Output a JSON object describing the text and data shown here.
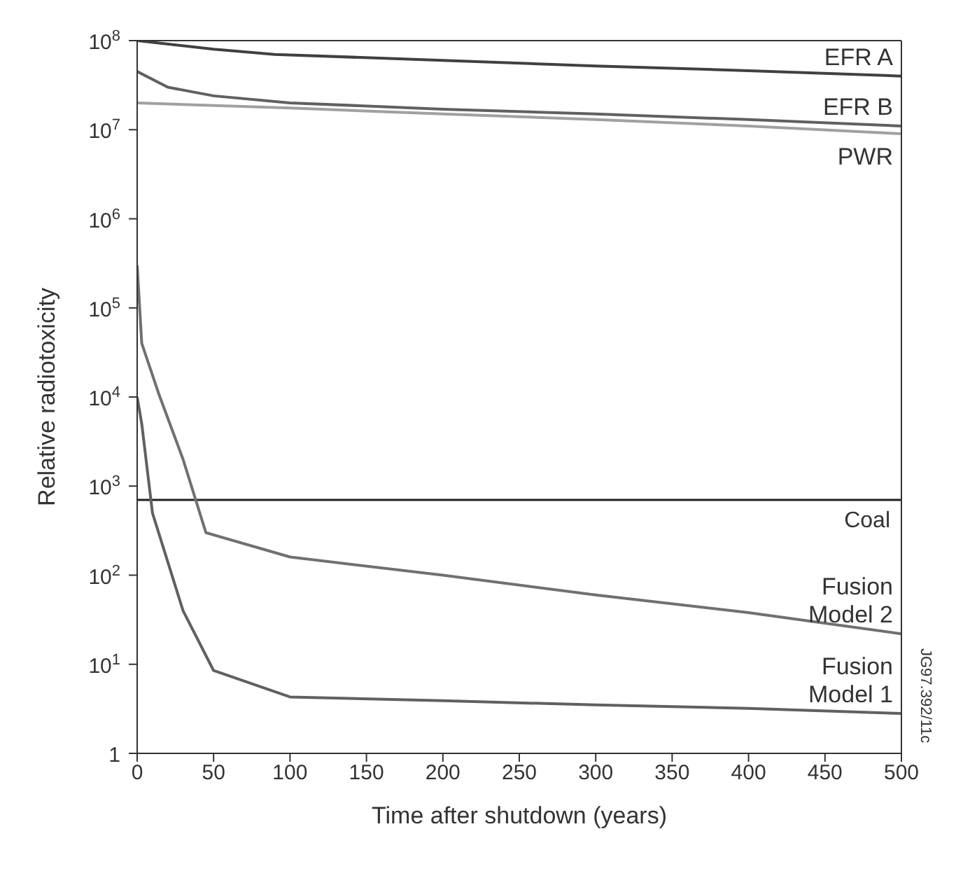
{
  "chart_data": {
    "type": "line",
    "xlabel": "Time after shutdown (years)",
    "ylabel": "Relative radiotoxicity",
    "log": "y",
    "xlim": [
      0,
      500
    ],
    "xticks": [
      0,
      50,
      100,
      150,
      200,
      250,
      300,
      350,
      400,
      450,
      500
    ],
    "ylim": [
      1,
      100000000
    ],
    "yticks": [
      1,
      {
        "value": 10,
        "label": "10$^{1}$"
      },
      {
        "value": 100,
        "label": "10$^{2}$"
      },
      {
        "value": 1000,
        "label": "10$^{3}$"
      },
      {
        "value": 10000,
        "label": "10$^{4}$"
      },
      {
        "value": 100000,
        "label": "10$^{5}$"
      },
      {
        "value": 1000000,
        "label": "10$^{6}$"
      },
      {
        "value": 10000000,
        "label": "10$^{7}$"
      },
      {
        "value": 100000000,
        "label": "10$^{8}$"
      }
    ],
    "grid": false,
    "legend": false,
    "marker": "none",
    "line_style": "solid",
    "series": [
      {
        "name": "EFR A",
        "color": "#404040",
        "x": [
          0,
          50,
          90,
          200,
          300,
          400,
          500
        ],
        "values": [
          100000000,
          80000000,
          70000000,
          60000000,
          52000000,
          46000000,
          40000000
        ]
      },
      {
        "name": "EFR B",
        "color": "#606060",
        "x": [
          0,
          20,
          50,
          100,
          200,
          300,
          400,
          500
        ],
        "values": [
          45000000,
          30000000,
          24000000,
          20000000,
          17000000,
          15000000,
          13000000,
          11000000
        ]
      },
      {
        "name": "PWR",
        "color": "#a0a0a0",
        "x": [
          0,
          100,
          200,
          300,
          400,
          500
        ],
        "values": [
          20000000,
          17500000,
          15000000,
          13000000,
          11000000,
          9000000
        ]
      },
      {
        "name": "Fusion Model 2",
        "color": "#707070",
        "x": [
          0,
          3,
          14,
          30,
          45,
          100,
          200,
          300,
          400,
          500
        ],
        "values": [
          300000,
          40000,
          11000,
          2000,
          300,
          160,
          100,
          60,
          38,
          22
        ]
      },
      {
        "name": "Fusion Model 1",
        "color": "#606060",
        "x": [
          0,
          3,
          10,
          30,
          50,
          100,
          200,
          300,
          400,
          500
        ],
        "values": [
          10000,
          5000,
          500,
          40,
          8.5,
          4.3,
          3.9,
          3.5,
          3.2,
          2.8
        ]
      }
    ],
    "ref_lines": [
      {
        "axis": "y",
        "value": 700,
        "label": "Coal",
        "color": "#202020"
      }
    ],
    "annotations": [
      "JG97.392/11c"
    ]
  }
}
